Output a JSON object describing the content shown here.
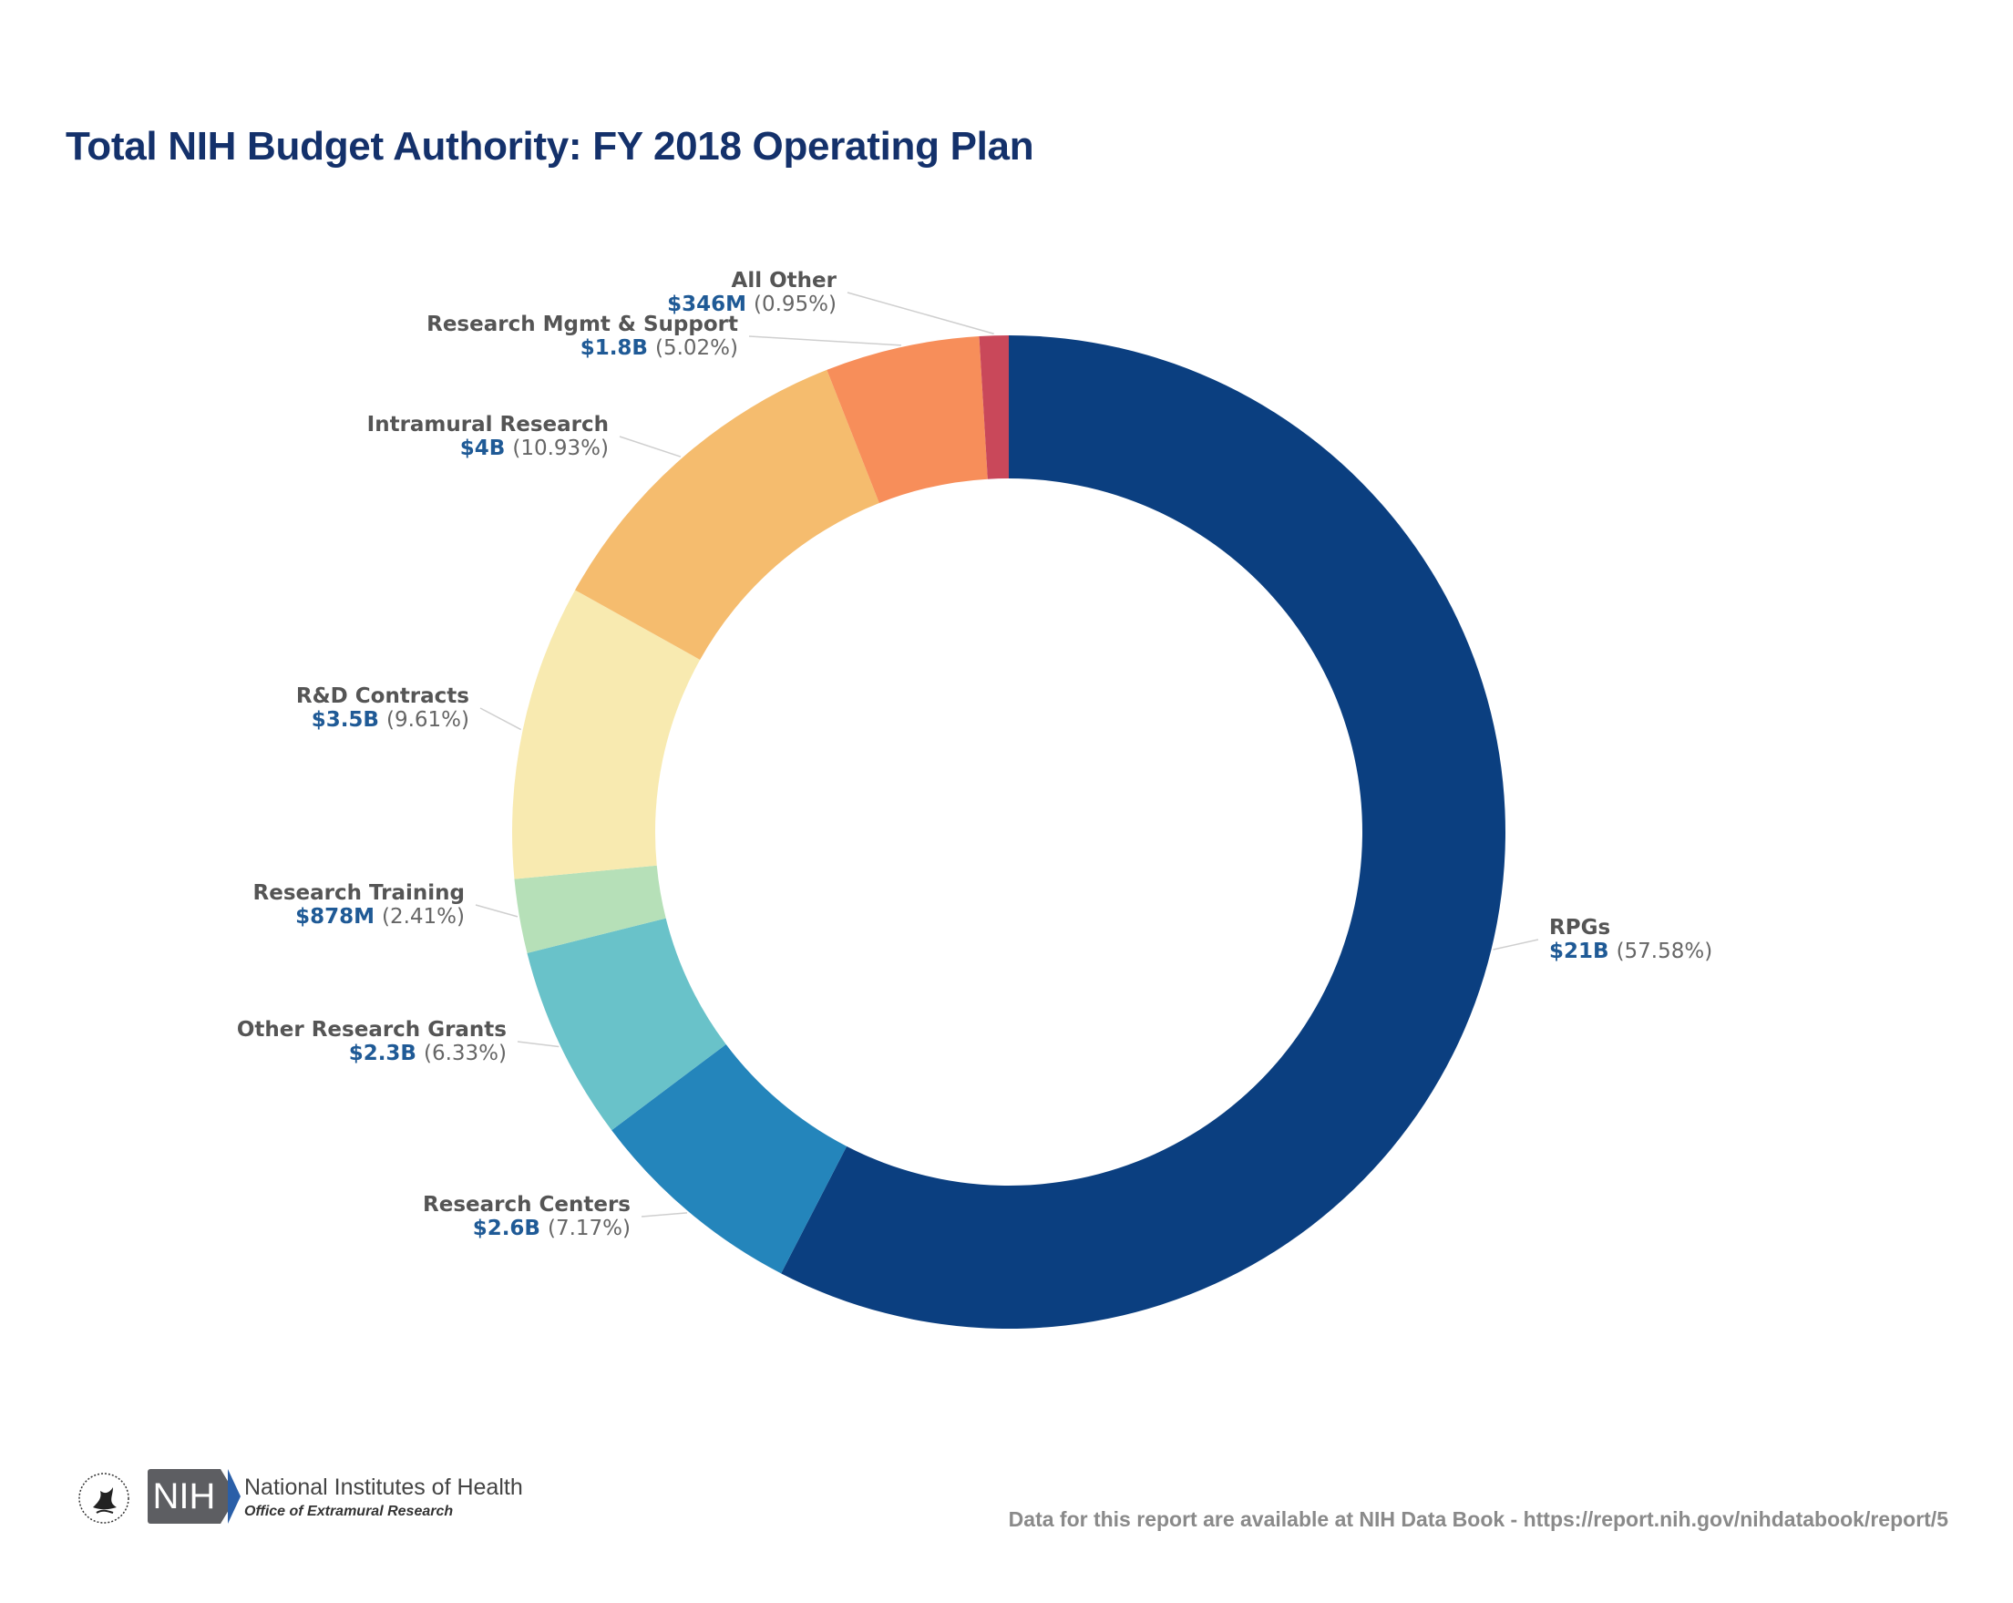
{
  "chart_data": {
    "type": "pie",
    "donut": true,
    "title": "Total NIH Budget Authority: FY 2018 Operating Plan",
    "start_angle_deg": 0,
    "direction": "clockwise",
    "slices": [
      {
        "name": "RPGs",
        "value_label": "$21B",
        "pct_label": "(57.58%)",
        "pct": 57.58,
        "color": "#0b3f80"
      },
      {
        "name": "Research Centers",
        "value_label": "$2.6B",
        "pct_label": "(7.17%)",
        "pct": 7.17,
        "color": "#2485bb"
      },
      {
        "name": "Other Research Grants",
        "value_label": "$2.3B",
        "pct_label": "(6.33%)",
        "pct": 6.33,
        "color": "#69c2c9"
      },
      {
        "name": "Research Training",
        "value_label": "$878M",
        "pct_label": "(2.41%)",
        "pct": 2.41,
        "color": "#b6e0b8"
      },
      {
        "name": "R&D Contracts",
        "value_label": "$3.5B",
        "pct_label": "(9.61%)",
        "pct": 9.61,
        "color": "#f8eab0"
      },
      {
        "name": "Intramural Research",
        "value_label": "$4B",
        "pct_label": "(10.93%)",
        "pct": 10.93,
        "color": "#f5bc6e"
      },
      {
        "name": "Research Mgmt & Support",
        "value_label": "$1.8B",
        "pct_label": "(5.02%)",
        "pct": 5.02,
        "color": "#f78e5a"
      },
      {
        "name": "All Other",
        "value_label": "$346M",
        "pct_label": "(0.95%)",
        "pct": 0.95,
        "color": "#c9485a"
      }
    ]
  },
  "footer": {
    "logo_text": "NIH",
    "org_name": "National Institutes of Health",
    "org_sub": "Office of Extramural Research",
    "source_note": "Data for this report are available at NIH Data Book - https://report.nih.gov/nihdatabook/report/5"
  }
}
